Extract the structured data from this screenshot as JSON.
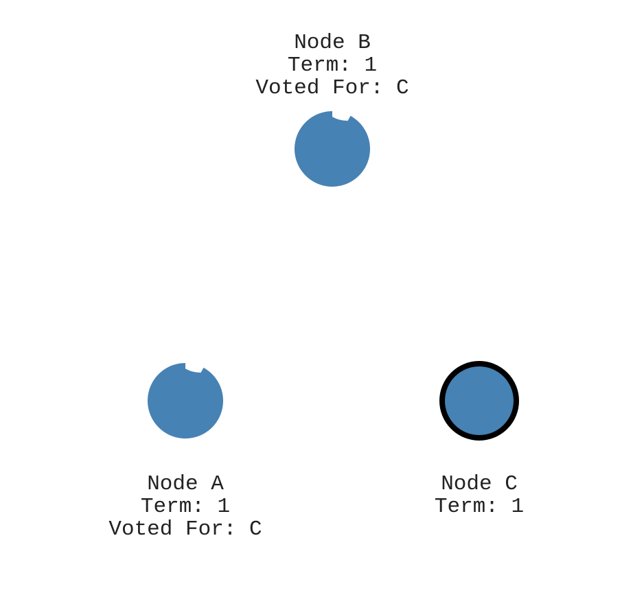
{
  "colors": {
    "node_fill": "#4682b4",
    "leader_stroke": "#000000",
    "text": "#222222",
    "background": "#ffffff"
  },
  "nodes": [
    {
      "id": "B",
      "name": "Node B",
      "term": "Term: 1",
      "voted_for": "Voted For: C",
      "role": "follower",
      "election_timeout_progress": 0.08
    },
    {
      "id": "A",
      "name": "Node A",
      "term": "Term: 1",
      "voted_for": "Voted For: C",
      "role": "follower",
      "election_timeout_progress": 0.08
    },
    {
      "id": "C",
      "name": "Node C",
      "term": "Term: 1",
      "voted_for": "",
      "role": "leader",
      "election_timeout_progress": 0
    }
  ]
}
